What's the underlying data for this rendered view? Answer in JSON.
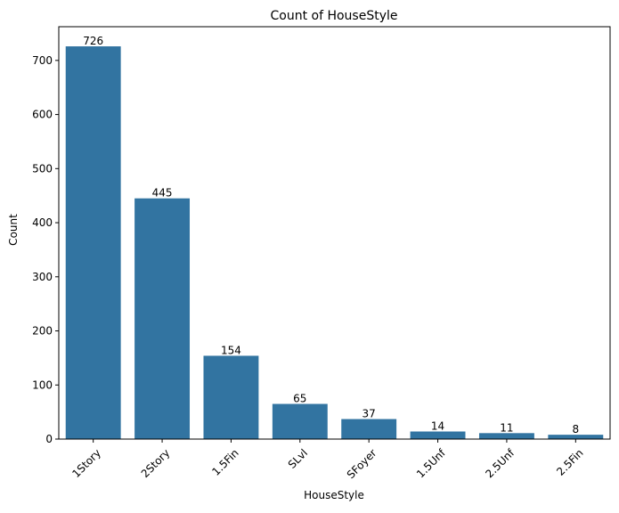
{
  "chart_data": {
    "type": "bar",
    "title": "Count of HouseStyle",
    "xlabel": "HouseStyle",
    "ylabel": "Count",
    "categories": [
      "1Story",
      "2Story",
      "1.5Fin",
      "SLvl",
      "SFoyer",
      "1.5Unf",
      "2.5Unf",
      "2.5Fin"
    ],
    "values": [
      726,
      445,
      154,
      65,
      37,
      14,
      11,
      8
    ],
    "yticks": [
      0,
      100,
      200,
      300,
      400,
      500,
      600,
      700
    ],
    "ylim": [
      0,
      762.3
    ],
    "color": "#3274a1",
    "grid": false,
    "legend": "none"
  }
}
